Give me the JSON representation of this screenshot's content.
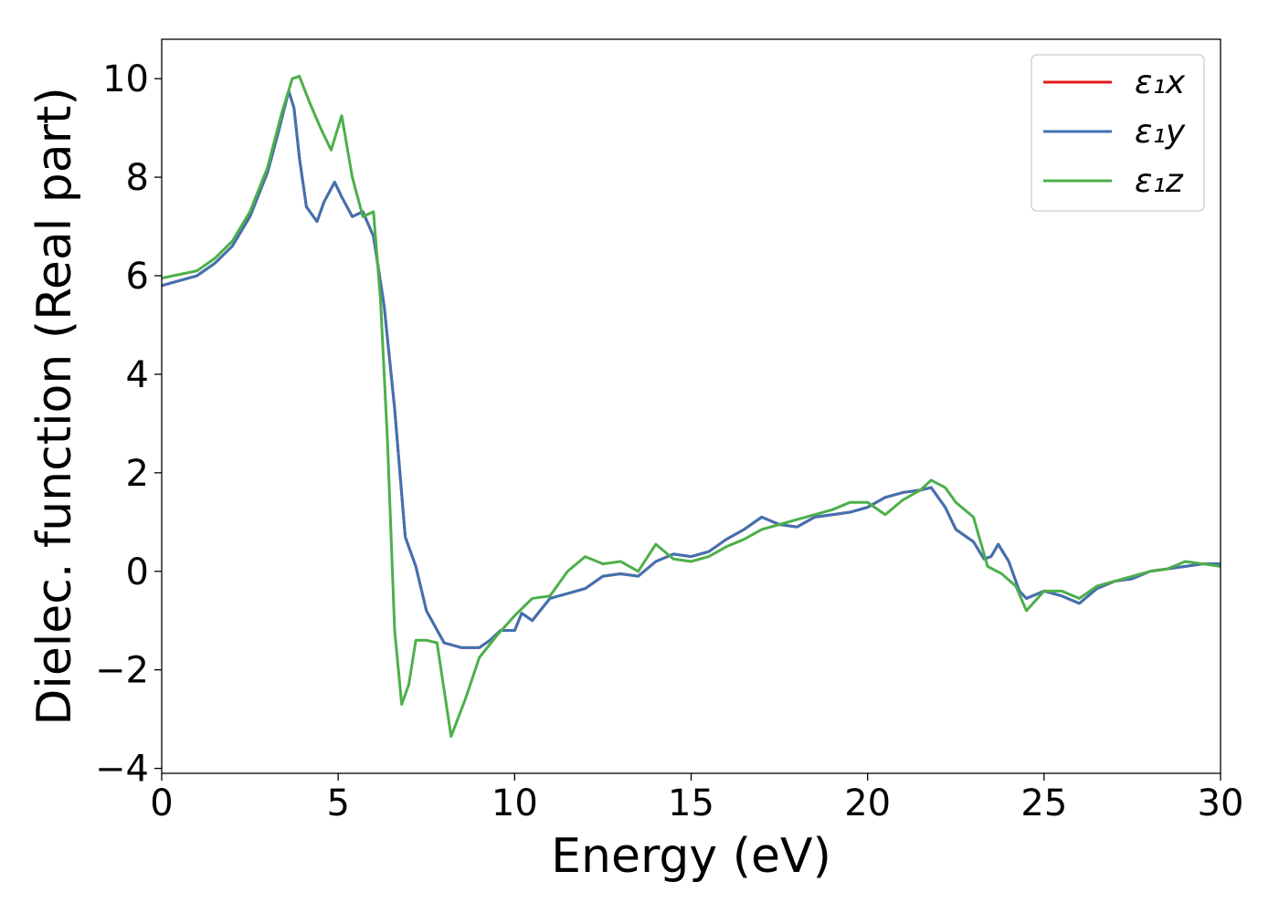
{
  "chart_data": {
    "type": "line",
    "title": "",
    "xlabel": "Energy (eV)",
    "ylabel": "Dielec. function (Real part)",
    "xlim": [
      0,
      30
    ],
    "ylim": [
      -4.1,
      10.8
    ],
    "xticks": [
      0,
      5,
      10,
      15,
      20,
      25,
      30
    ],
    "xtick_labels": [
      "0",
      "5",
      "10",
      "15",
      "20",
      "25",
      "30"
    ],
    "yticks": [
      -4,
      -2,
      0,
      2,
      4,
      6,
      8,
      10
    ],
    "ytick_labels": [
      "−4",
      "−2",
      "0",
      "2",
      "4",
      "6",
      "8",
      "10"
    ],
    "grid": false,
    "legend_position": "top-right",
    "series": [
      {
        "name": "ε₁x",
        "color": "#e41a1c",
        "x": [
          0,
          1,
          1.5,
          2,
          2.5,
          3,
          3.3,
          3.6,
          3.75,
          3.9,
          4.1,
          4.4,
          4.6,
          4.9,
          5.1,
          5.4,
          5.7,
          6.0,
          6.3,
          6.6,
          6.9,
          7.2,
          7.5,
          8.0,
          8.5,
          9.0,
          9.3,
          9.6,
          10.0,
          10.2,
          10.5,
          11.0,
          11.5,
          12.0,
          12.5,
          13.0,
          13.5,
          14.0,
          14.5,
          15.0,
          15.5,
          16.0,
          16.5,
          17.0,
          17.5,
          18.0,
          18.5,
          19.0,
          19.5,
          20.0,
          20.5,
          21.0,
          21.5,
          21.8,
          22.2,
          22.5,
          23.0,
          23.3,
          23.5,
          23.7,
          24.0,
          24.3,
          24.5,
          25.0,
          25.5,
          26.0,
          26.5,
          27.0,
          27.5,
          28.0,
          28.5,
          29.0,
          29.5,
          30.0
        ],
        "values": [
          5.8,
          6.0,
          6.25,
          6.6,
          7.2,
          8.1,
          8.9,
          9.75,
          9.4,
          8.4,
          7.4,
          7.1,
          7.5,
          7.9,
          7.6,
          7.2,
          7.3,
          6.8,
          5.4,
          3.3,
          0.7,
          0.1,
          -0.8,
          -1.45,
          -1.55,
          -1.55,
          -1.4,
          -1.2,
          -1.2,
          -0.85,
          -1.0,
          -0.55,
          -0.45,
          -0.35,
          -0.1,
          -0.05,
          -0.1,
          0.2,
          0.35,
          0.3,
          0.4,
          0.65,
          0.85,
          1.1,
          0.95,
          0.9,
          1.1,
          1.15,
          1.2,
          1.3,
          1.5,
          1.6,
          1.65,
          1.7,
          1.3,
          0.85,
          0.6,
          0.25,
          0.3,
          0.55,
          0.2,
          -0.4,
          -0.55,
          -0.4,
          -0.5,
          -0.65,
          -0.35,
          -0.2,
          -0.15,
          0.0,
          0.05,
          0.1,
          0.15,
          0.15
        ]
      },
      {
        "name": "ε₁y",
        "color": "#3f72b2",
        "x": [
          0,
          1,
          1.5,
          2,
          2.5,
          3,
          3.3,
          3.6,
          3.75,
          3.9,
          4.1,
          4.4,
          4.6,
          4.9,
          5.1,
          5.4,
          5.7,
          6.0,
          6.3,
          6.6,
          6.9,
          7.2,
          7.5,
          8.0,
          8.5,
          9.0,
          9.3,
          9.6,
          10.0,
          10.2,
          10.5,
          11.0,
          11.5,
          12.0,
          12.5,
          13.0,
          13.5,
          14.0,
          14.5,
          15.0,
          15.5,
          16.0,
          16.5,
          17.0,
          17.5,
          18.0,
          18.5,
          19.0,
          19.5,
          20.0,
          20.5,
          21.0,
          21.5,
          21.8,
          22.2,
          22.5,
          23.0,
          23.3,
          23.5,
          23.7,
          24.0,
          24.3,
          24.5,
          25.0,
          25.5,
          26.0,
          26.5,
          27.0,
          27.5,
          28.0,
          28.5,
          29.0,
          29.5,
          30.0
        ],
        "values": [
          5.8,
          6.0,
          6.25,
          6.6,
          7.2,
          8.1,
          8.9,
          9.75,
          9.4,
          8.4,
          7.4,
          7.1,
          7.5,
          7.9,
          7.6,
          7.2,
          7.3,
          6.8,
          5.4,
          3.3,
          0.7,
          0.1,
          -0.8,
          -1.45,
          -1.55,
          -1.55,
          -1.4,
          -1.2,
          -1.2,
          -0.85,
          -1.0,
          -0.55,
          -0.45,
          -0.35,
          -0.1,
          -0.05,
          -0.1,
          0.2,
          0.35,
          0.3,
          0.4,
          0.65,
          0.85,
          1.1,
          0.95,
          0.9,
          1.1,
          1.15,
          1.2,
          1.3,
          1.5,
          1.6,
          1.65,
          1.7,
          1.3,
          0.85,
          0.6,
          0.25,
          0.3,
          0.55,
          0.2,
          -0.4,
          -0.55,
          -0.4,
          -0.5,
          -0.65,
          -0.35,
          -0.2,
          -0.15,
          0.0,
          0.05,
          0.1,
          0.15,
          0.15
        ]
      },
      {
        "name": "ε₁z",
        "color": "#4daf4a",
        "x": [
          0,
          1,
          1.5,
          2,
          2.5,
          3,
          3.4,
          3.7,
          3.9,
          4.2,
          4.5,
          4.8,
          5.1,
          5.4,
          5.7,
          6.0,
          6.2,
          6.4,
          6.6,
          6.8,
          7.0,
          7.2,
          7.5,
          7.8,
          8.2,
          8.6,
          9.0,
          9.5,
          10.0,
          10.5,
          11.0,
          11.5,
          12.0,
          12.5,
          13.0,
          13.5,
          14.0,
          14.5,
          15.0,
          15.5,
          16.0,
          16.5,
          17.0,
          17.5,
          18.0,
          18.5,
          19.0,
          19.5,
          20.0,
          20.5,
          21.0,
          21.5,
          21.8,
          22.2,
          22.5,
          23.0,
          23.4,
          23.8,
          24.2,
          24.5,
          25.0,
          25.5,
          26.0,
          26.5,
          27.0,
          27.5,
          28.0,
          28.5,
          29.0,
          29.5,
          30.0
        ],
        "values": [
          5.95,
          6.1,
          6.35,
          6.7,
          7.3,
          8.2,
          9.3,
          10.0,
          10.05,
          9.5,
          9.0,
          8.55,
          9.25,
          8.0,
          7.2,
          7.3,
          5.5,
          2.6,
          -1.2,
          -2.7,
          -2.3,
          -1.4,
          -1.4,
          -1.45,
          -3.35,
          -2.6,
          -1.75,
          -1.3,
          -0.9,
          -0.55,
          -0.5,
          0.0,
          0.3,
          0.15,
          0.2,
          0.0,
          0.55,
          0.25,
          0.2,
          0.3,
          0.5,
          0.65,
          0.85,
          0.95,
          1.05,
          1.15,
          1.25,
          1.4,
          1.4,
          1.15,
          1.45,
          1.65,
          1.85,
          1.7,
          1.4,
          1.1,
          0.1,
          -0.05,
          -0.3,
          -0.8,
          -0.4,
          -0.4,
          -0.55,
          -0.3,
          -0.2,
          -0.1,
          0.0,
          0.05,
          0.2,
          0.15,
          0.1
        ]
      }
    ]
  }
}
